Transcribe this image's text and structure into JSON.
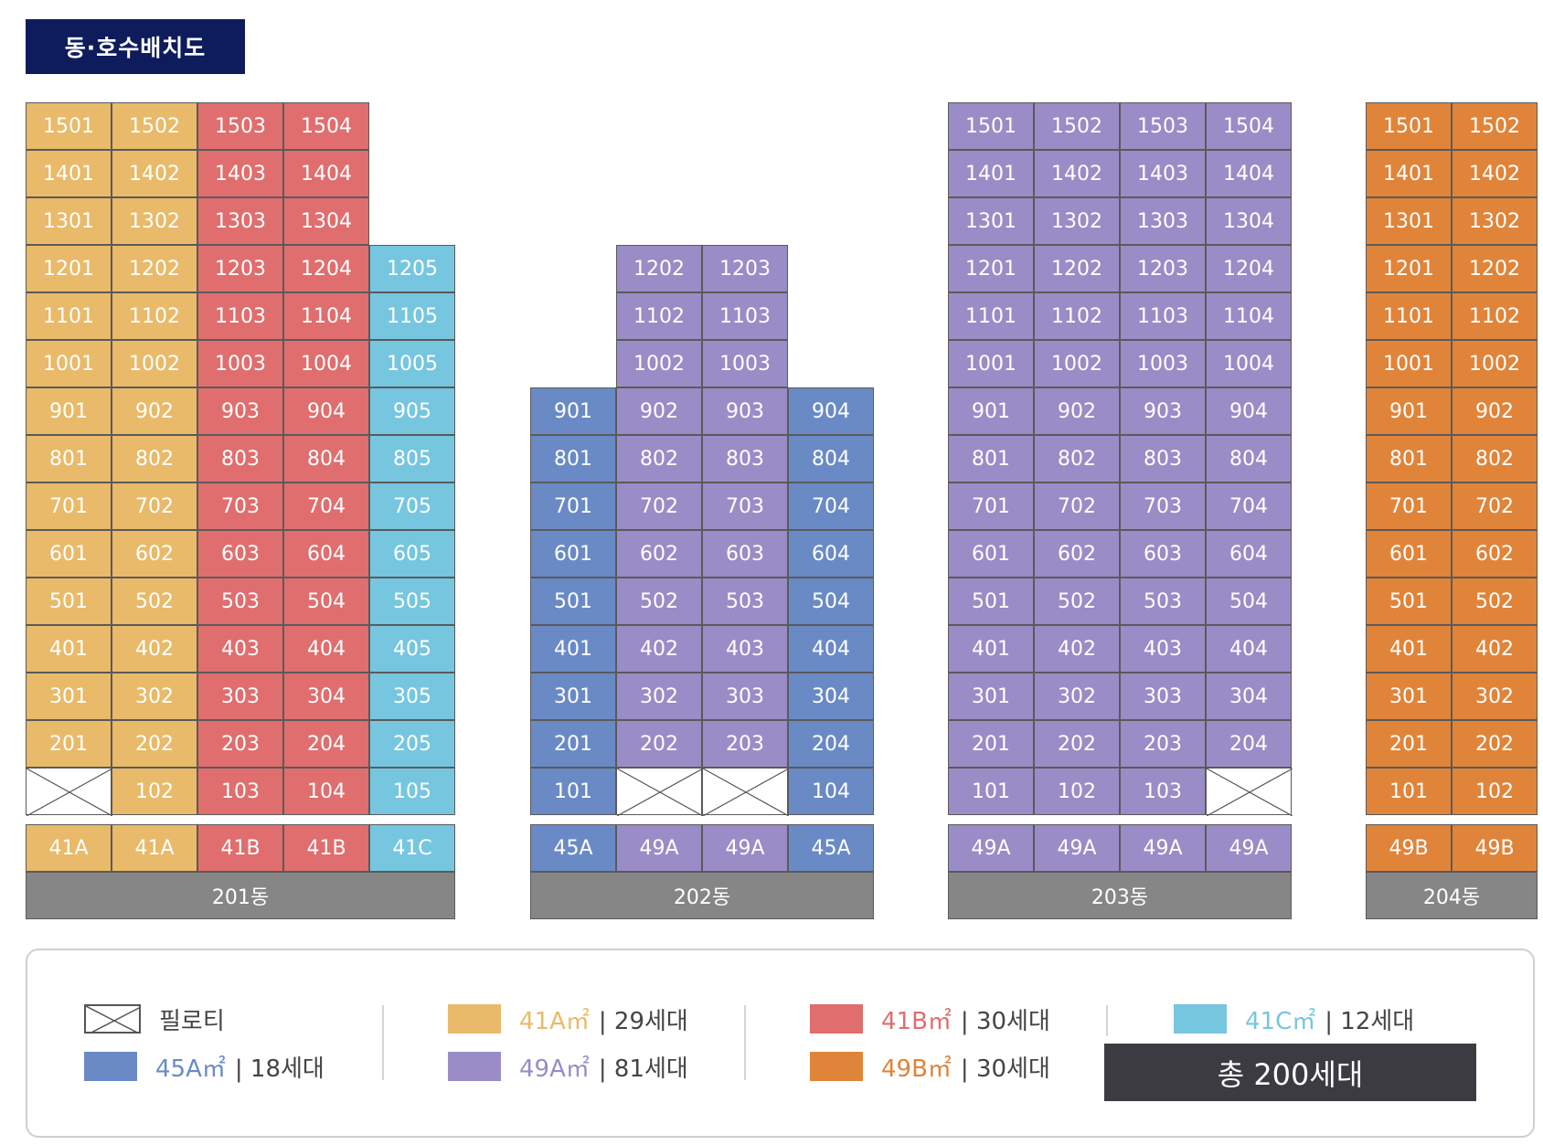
{
  "title": "동·호수배치도",
  "colors": {
    "41A": "#e8ba6a",
    "41B": "#e06e6e",
    "41C": "#76c6e0",
    "45A": "#6a8ac6",
    "49A": "#9a8cc6",
    "49B": "#e0843a"
  },
  "buildings": [
    {
      "name": "201동",
      "floors": 15,
      "columns": [
        {
          "units": [
            "1501",
            "1401",
            "1301",
            "1201",
            "1101",
            "1001",
            "901",
            "801",
            "701",
            "601",
            "501",
            "401",
            "301",
            "201",
            ""
          ],
          "type": "41A",
          "type_label": "41A"
        },
        {
          "units": [
            "1502",
            "1402",
            "1302",
            "1202",
            "1102",
            "1002",
            "902",
            "802",
            "702",
            "602",
            "502",
            "402",
            "302",
            "202",
            "102"
          ],
          "type": "41A",
          "type_label": "41A"
        },
        {
          "units": [
            "1503",
            "1403",
            "1303",
            "1203",
            "1103",
            "1003",
            "903",
            "803",
            "703",
            "603",
            "503",
            "403",
            "303",
            "203",
            "103"
          ],
          "type": "41B",
          "type_label": "41B"
        },
        {
          "units": [
            "1504",
            "1404",
            "1304",
            "1204",
            "1104",
            "1004",
            "904",
            "804",
            "704",
            "604",
            "504",
            "404",
            "304",
            "204",
            "104"
          ],
          "type": "41B",
          "type_label": "41B"
        },
        {
          "units": [
            "",
            "",
            "",
            "1205",
            "1105",
            "1005",
            "905",
            "805",
            "705",
            "605",
            "505",
            "405",
            "305",
            "205",
            "105"
          ],
          "type": "41C",
          "type_label": "41C"
        }
      ]
    },
    {
      "name": "202동",
      "floors": 12,
      "columns": [
        {
          "units": [
            "",
            "",
            "",
            "901",
            "801",
            "701",
            "601",
            "501",
            "401",
            "301",
            "201",
            "101"
          ],
          "type": "45A",
          "type_label": "45A"
        },
        {
          "units": [
            "1202",
            "1102",
            "1002",
            "902",
            "802",
            "702",
            "602",
            "502",
            "402",
            "302",
            "202",
            ""
          ],
          "type": "49A",
          "type_label": "49A"
        },
        {
          "units": [
            "1203",
            "1103",
            "1003",
            "903",
            "803",
            "703",
            "603",
            "503",
            "403",
            "303",
            "203",
            ""
          ],
          "type": "49A",
          "type_label": "49A"
        },
        {
          "units": [
            "",
            "",
            "",
            "904",
            "804",
            "704",
            "604",
            "504",
            "404",
            "304",
            "204",
            "104"
          ],
          "type": "45A",
          "type_label": "45A"
        }
      ]
    },
    {
      "name": "203동",
      "floors": 15,
      "columns": [
        {
          "units": [
            "1501",
            "1401",
            "1301",
            "1201",
            "1101",
            "1001",
            "901",
            "801",
            "701",
            "601",
            "501",
            "401",
            "301",
            "201",
            "101"
          ],
          "type": "49A",
          "type_label": "49A"
        },
        {
          "units": [
            "1502",
            "1402",
            "1302",
            "1202",
            "1102",
            "1002",
            "902",
            "802",
            "702",
            "602",
            "502",
            "402",
            "302",
            "202",
            "102"
          ],
          "type": "49A",
          "type_label": "49A"
        },
        {
          "units": [
            "1503",
            "1403",
            "1303",
            "1203",
            "1103",
            "1003",
            "903",
            "803",
            "703",
            "603",
            "503",
            "403",
            "303",
            "203",
            "103"
          ],
          "type": "49A",
          "type_label": "49A"
        },
        {
          "units": [
            "1504",
            "1404",
            "1304",
            "1204",
            "1104",
            "1004",
            "904",
            "804",
            "704",
            "604",
            "504",
            "404",
            "304",
            "204",
            ""
          ],
          "type": "49A",
          "type_label": "49A"
        }
      ]
    },
    {
      "name": "204동",
      "floors": 15,
      "columns": [
        {
          "units": [
            "1501",
            "1401",
            "1301",
            "1201",
            "1101",
            "1001",
            "901",
            "801",
            "701",
            "601",
            "501",
            "401",
            "301",
            "201",
            "101"
          ],
          "type": "49B",
          "type_label": "49B"
        },
        {
          "units": [
            "1502",
            "1402",
            "1302",
            "1202",
            "1102",
            "1002",
            "902",
            "802",
            "702",
            "602",
            "502",
            "402",
            "302",
            "202",
            "102"
          ],
          "type": "49B",
          "type_label": "49B"
        }
      ]
    }
  ],
  "legend": {
    "piloti": "필로티",
    "items": [
      {
        "type": "41A",
        "label": "41A㎡",
        "count": "| 29세대"
      },
      {
        "type": "41B",
        "label": "41B㎡",
        "count": "| 30세대"
      },
      {
        "type": "41C",
        "label": "41C㎡",
        "count": "| 12세대"
      },
      {
        "type": "45A",
        "label": "45A㎡",
        "count": "| 18세대"
      },
      {
        "type": "49A",
        "label": "49A㎡",
        "count": "| 81세대"
      },
      {
        "type": "49B",
        "label": "49B㎡",
        "count": "| 30세대"
      }
    ],
    "total": "총 200세대"
  }
}
